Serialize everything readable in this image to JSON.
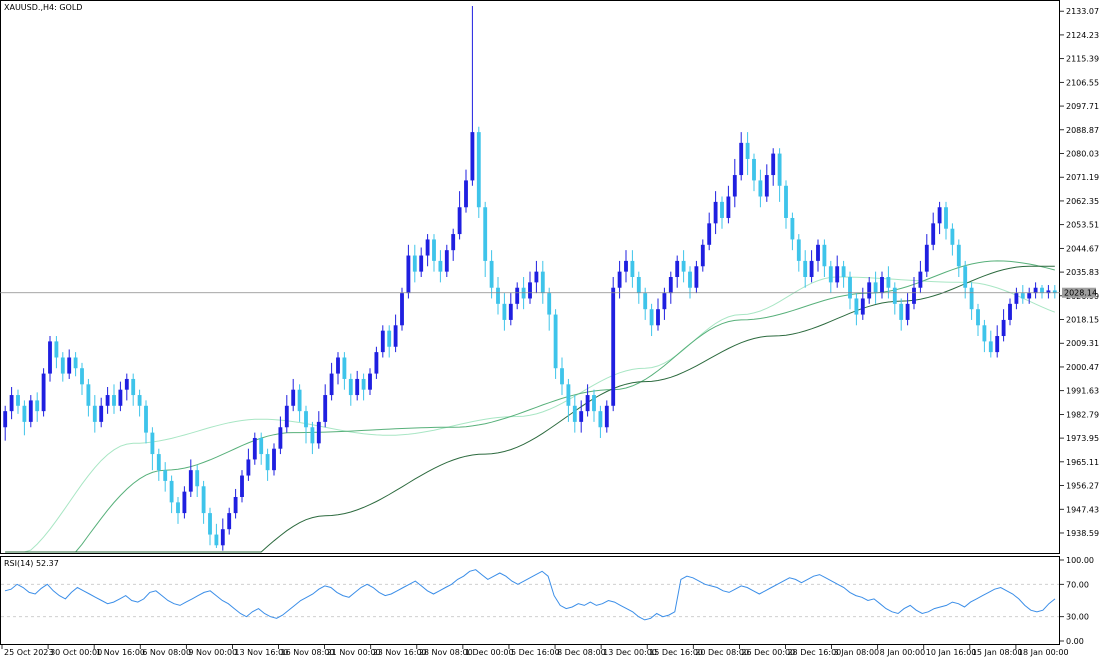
{
  "window": {
    "symbol_title": "XAUUSD.,H4:  GOLD"
  },
  "colors": {
    "background": "#ffffff",
    "bull_candle": "#1f1fe0",
    "bear_candle": "#3ec4ea",
    "ma_fast": "#a8e6c4",
    "ma_mid": "#57b07a",
    "ma_slow": "#2c6a3e",
    "rsi_line": "#3b8ee8",
    "grid_line": "#c8c8c8",
    "price_line": "#888888",
    "current_price_bg": "#9e9e9e"
  },
  "price_axis": {
    "labels": [
      "2133.07",
      "2124.23",
      "2115.39",
      "2106.55",
      "2097.71",
      "2088.87",
      "2080.03",
      "2071.19",
      "2062.35",
      "2053.51",
      "2044.67",
      "2035.83",
      "2026.99",
      "2018.15",
      "2009.31",
      "2000.47",
      "1991.63",
      "1982.79",
      "1973.95",
      "1965.11",
      "1956.27",
      "1947.43",
      "1938.59"
    ],
    "current_price": "2028.14",
    "ylim": [
      1931.5,
      2136.5
    ]
  },
  "time_axis": {
    "labels": [
      "25 Oct 2023",
      "30 Oct 00:00",
      "1 Nov 16:00",
      "6 Nov 08:00",
      "9 Nov 00:00",
      "13 Nov 16:00",
      "16 Nov 08:00",
      "21 Nov 00:00",
      "23 Nov 16:00",
      "28 Nov 08:00",
      "1 Dec 00:00",
      "5 Dec 16:00",
      "8 Dec 08:00",
      "13 Dec 00:00",
      "15 Dec 16:00",
      "20 Dec 08:00",
      "26 Dec 00:00",
      "28 Dec 16:00",
      "3 Jan 08:00",
      "8 Jan 00:00",
      "10 Jan 16:00",
      "15 Jan 08:00",
      "18 Jan 00:00"
    ]
  },
  "rsi": {
    "label": "RSI(14) 52.37",
    "levels": [
      "100.00",
      "70.00",
      "30.00",
      "0.00"
    ],
    "ylim": [
      0,
      100
    ],
    "values": [
      62,
      64,
      70,
      66,
      60,
      58,
      65,
      70,
      62,
      56,
      52,
      60,
      66,
      62,
      58,
      54,
      50,
      46,
      48,
      52,
      56,
      50,
      48,
      52,
      60,
      62,
      56,
      50,
      46,
      44,
      48,
      52,
      56,
      60,
      62,
      56,
      50,
      46,
      40,
      34,
      30,
      36,
      40,
      34,
      30,
      28,
      32,
      38,
      44,
      50,
      54,
      58,
      64,
      68,
      66,
      60,
      56,
      54,
      60,
      66,
      70,
      66,
      60,
      56,
      58,
      62,
      66,
      70,
      74,
      68,
      62,
      58,
      62,
      66,
      70,
      76,
      80,
      86,
      88,
      82,
      76,
      80,
      84,
      80,
      74,
      70,
      74,
      78,
      82,
      86,
      80,
      56,
      44,
      40,
      42,
      46,
      44,
      48,
      44,
      46,
      50,
      48,
      44,
      40,
      36,
      30,
      26,
      28,
      34,
      30,
      32,
      36,
      76,
      80,
      78,
      74,
      70,
      68,
      66,
      62,
      60,
      64,
      68,
      66,
      62,
      58,
      62,
      66,
      70,
      74,
      78,
      76,
      72,
      76,
      80,
      82,
      78,
      74,
      70,
      66,
      60,
      56,
      54,
      50,
      52,
      46,
      40,
      36,
      34,
      40,
      44,
      38,
      34,
      36,
      40,
      42,
      44,
      48,
      46,
      42,
      48,
      52,
      56,
      60,
      64,
      66,
      62,
      58,
      52,
      44,
      38,
      36,
      38,
      46,
      52
    ]
  },
  "chart_data": {
    "type": "candlestick",
    "title": "XAUUSD.,H4:  GOLD",
    "series_points": 175,
    "key_levels": {
      "current": 2028.14,
      "high": 2135.5,
      "low": 1933.2
    },
    "moving_averages": [
      {
        "values_anchor": [
          [
            0,
            1928
          ],
          [
            20,
            1972
          ],
          [
            40,
            1981
          ],
          [
            60,
            1975
          ],
          [
            80,
            1982
          ],
          [
            100,
            2000
          ],
          [
            115,
            2020
          ],
          [
            130,
            2034
          ],
          [
            150,
            2032
          ],
          [
            170,
            2018
          ],
          [
            175,
            2022
          ]
        ]
      },
      {
        "values_anchor": [
          [
            0,
            1910
          ],
          [
            25,
            1962
          ],
          [
            45,
            1976
          ],
          [
            70,
            1978
          ],
          [
            95,
            1992
          ],
          [
            115,
            2018
          ],
          [
            135,
            2028
          ],
          [
            155,
            2040
          ],
          [
            175,
            2032
          ]
        ]
      },
      {
        "values_anchor": [
          [
            0,
            1880
          ],
          [
            30,
            1918
          ],
          [
            50,
            1945
          ],
          [
            75,
            1968
          ],
          [
            100,
            1995
          ],
          [
            120,
            2012
          ],
          [
            140,
            2025
          ],
          [
            160,
            2038
          ],
          [
            175,
            2038
          ]
        ]
      }
    ],
    "candles": [
      [
        1978,
        1984,
        1973,
        1986
      ],
      [
        1984,
        1990,
        1981,
        1993
      ],
      [
        1990,
        1986,
        1983,
        1992
      ],
      [
        1986,
        1980,
        1975,
        1988
      ],
      [
        1980,
        1988,
        1978,
        1990
      ],
      [
        1988,
        1984,
        1980,
        1991
      ],
      [
        1984,
        1998,
        1982,
        2000
      ],
      [
        1998,
        2010,
        1995,
        2012
      ],
      [
        2010,
        2004,
        2000,
        2012
      ],
      [
        2004,
        1998,
        1995,
        2006
      ],
      [
        1998,
        2004,
        1996,
        2007
      ],
      [
        2004,
        2000,
        1997,
        2006
      ],
      [
        2000,
        1994,
        1990,
        2002
      ],
      [
        1994,
        1986,
        1982,
        1996
      ],
      [
        1986,
        1980,
        1976,
        1990
      ],
      [
        1980,
        1986,
        1978,
        1989
      ],
      [
        1986,
        1990,
        1983,
        1993
      ],
      [
        1990,
        1986,
        1983,
        1994
      ],
      [
        1986,
        1992,
        1984,
        1995
      ],
      [
        1992,
        1996,
        1988,
        1998
      ],
      [
        1996,
        1990,
        1986,
        1998
      ],
      [
        1990,
        1986,
        1982,
        1992
      ],
      [
        1986,
        1976,
        1972,
        1988
      ],
      [
        1976,
        1968,
        1962,
        1978
      ],
      [
        1968,
        1962,
        1958,
        1970
      ],
      [
        1962,
        1958,
        1954,
        1965
      ],
      [
        1958,
        1950,
        1946,
        1960
      ],
      [
        1950,
        1946,
        1942,
        1952
      ],
      [
        1946,
        1954,
        1944,
        1956
      ],
      [
        1954,
        1962,
        1952,
        1966
      ],
      [
        1962,
        1956,
        1952,
        1964
      ],
      [
        1956,
        1946,
        1942,
        1958
      ],
      [
        1946,
        1938,
        1934,
        1948
      ],
      [
        1938,
        1934,
        1933,
        1942
      ],
      [
        1934,
        1940,
        1932,
        1944
      ],
      [
        1940,
        1946,
        1938,
        1948
      ],
      [
        1946,
        1952,
        1944,
        1955
      ],
      [
        1952,
        1960,
        1950,
        1962
      ],
      [
        1960,
        1966,
        1958,
        1970
      ],
      [
        1966,
        1974,
        1964,
        1976
      ],
      [
        1974,
        1968,
        1964,
        1976
      ],
      [
        1968,
        1962,
        1958,
        1970
      ],
      [
        1962,
        1970,
        1960,
        1972
      ],
      [
        1970,
        1978,
        1968,
        1982
      ],
      [
        1978,
        1986,
        1976,
        1990
      ],
      [
        1986,
        1992,
        1984,
        1996
      ],
      [
        1992,
        1984,
        1980,
        1994
      ],
      [
        1984,
        1978,
        1972,
        1986
      ],
      [
        1978,
        1972,
        1968,
        1980
      ],
      [
        1972,
        1980,
        1970,
        1984
      ],
      [
        1980,
        1990,
        1978,
        1994
      ],
      [
        1990,
        1998,
        1988,
        2002
      ],
      [
        1998,
        2004,
        1994,
        2006
      ],
      [
        2004,
        1996,
        1992,
        2006
      ],
      [
        1996,
        1990,
        1986,
        1998
      ],
      [
        1990,
        1996,
        1988,
        1999
      ],
      [
        1996,
        1992,
        1988,
        1998
      ],
      [
        1992,
        1998,
        1990,
        2000
      ],
      [
        1998,
        2006,
        1996,
        2008
      ],
      [
        2006,
        2014,
        2004,
        2016
      ],
      [
        2014,
        2008,
        2004,
        2016
      ],
      [
        2008,
        2016,
        2006,
        2020
      ],
      [
        2016,
        2028,
        2014,
        2030
      ],
      [
        2028,
        2042,
        2026,
        2046
      ],
      [
        2042,
        2036,
        2032,
        2046
      ],
      [
        2036,
        2042,
        2034,
        2045
      ],
      [
        2042,
        2048,
        2038,
        2050
      ],
      [
        2048,
        2040,
        2036,
        2050
      ],
      [
        2040,
        2036,
        2032,
        2044
      ],
      [
        2036,
        2044,
        2034,
        2046
      ],
      [
        2044,
        2050,
        2040,
        2052
      ],
      [
        2050,
        2060,
        2048,
        2066
      ],
      [
        2060,
        2070,
        2058,
        2074
      ],
      [
        2070,
        2088,
        2068,
        2135
      ],
      [
        2088,
        2060,
        2056,
        2090
      ],
      [
        2060,
        2040,
        2034,
        2062
      ],
      [
        2040,
        2030,
        2026,
        2044
      ],
      [
        2030,
        2024,
        2020,
        2034
      ],
      [
        2024,
        2018,
        2014,
        2028
      ],
      [
        2018,
        2024,
        2016,
        2028
      ],
      [
        2024,
        2030,
        2022,
        2032
      ],
      [
        2030,
        2026,
        2022,
        2034
      ],
      [
        2026,
        2032,
        2024,
        2036
      ],
      [
        2032,
        2036,
        2028,
        2040
      ],
      [
        2036,
        2028,
        2024,
        2040
      ],
      [
        2028,
        2020,
        2014,
        2030
      ],
      [
        2020,
        2000,
        1996,
        2022
      ],
      [
        2000,
        1994,
        1990,
        2004
      ],
      [
        1994,
        1986,
        1980,
        1996
      ],
      [
        1986,
        1980,
        1976,
        1990
      ],
      [
        1980,
        1984,
        1976,
        1988
      ],
      [
        1984,
        1990,
        1982,
        1994
      ],
      [
        1990,
        1984,
        1980,
        1992
      ],
      [
        1984,
        1978,
        1974,
        1986
      ],
      [
        1978,
        1986,
        1976,
        1988
      ],
      [
        1986,
        2030,
        1984,
        2034
      ],
      [
        2030,
        2036,
        2026,
        2040
      ],
      [
        2036,
        2040,
        2032,
        2044
      ],
      [
        2040,
        2034,
        2030,
        2044
      ],
      [
        2034,
        2028,
        2024,
        2036
      ],
      [
        2028,
        2022,
        2018,
        2030
      ],
      [
        2022,
        2016,
        2012,
        2024
      ],
      [
        2016,
        2022,
        2014,
        2026
      ],
      [
        2022,
        2028,
        2018,
        2030
      ],
      [
        2028,
        2034,
        2024,
        2036
      ],
      [
        2034,
        2040,
        2030,
        2042
      ],
      [
        2040,
        2036,
        2032,
        2044
      ],
      [
        2036,
        2030,
        2026,
        2038
      ],
      [
        2030,
        2038,
        2028,
        2040
      ],
      [
        2038,
        2046,
        2036,
        2048
      ],
      [
        2046,
        2054,
        2044,
        2058
      ],
      [
        2054,
        2062,
        2050,
        2066
      ],
      [
        2062,
        2056,
        2052,
        2064
      ],
      [
        2056,
        2064,
        2054,
        2068
      ],
      [
        2064,
        2072,
        2060,
        2078
      ],
      [
        2072,
        2084,
        2070,
        2088
      ],
      [
        2084,
        2078,
        2072,
        2088
      ],
      [
        2078,
        2070,
        2066,
        2080
      ],
      [
        2070,
        2064,
        2060,
        2074
      ],
      [
        2064,
        2072,
        2062,
        2076
      ],
      [
        2072,
        2080,
        2068,
        2082
      ],
      [
        2080,
        2068,
        2062,
        2082
      ],
      [
        2068,
        2056,
        2052,
        2070
      ],
      [
        2056,
        2048,
        2044,
        2058
      ],
      [
        2048,
        2040,
        2036,
        2050
      ],
      [
        2040,
        2034,
        2030,
        2044
      ],
      [
        2034,
        2040,
        2032,
        2044
      ],
      [
        2040,
        2046,
        2036,
        2048
      ],
      [
        2046,
        2038,
        2034,
        2048
      ],
      [
        2038,
        2032,
        2028,
        2040
      ],
      [
        2032,
        2038,
        2030,
        2042
      ],
      [
        2038,
        2034,
        2030,
        2040
      ],
      [
        2034,
        2026,
        2022,
        2036
      ],
      [
        2026,
        2020,
        2016,
        2028
      ],
      [
        2020,
        2026,
        2018,
        2030
      ],
      [
        2026,
        2032,
        2024,
        2034
      ],
      [
        2032,
        2028,
        2024,
        2036
      ],
      [
        2028,
        2034,
        2026,
        2036
      ],
      [
        2034,
        2030,
        2026,
        2038
      ],
      [
        2030,
        2024,
        2020,
        2032
      ],
      [
        2024,
        2018,
        2014,
        2026
      ],
      [
        2018,
        2024,
        2016,
        2028
      ],
      [
        2024,
        2030,
        2022,
        2034
      ],
      [
        2030,
        2036,
        2028,
        2040
      ],
      [
        2036,
        2046,
        2034,
        2050
      ],
      [
        2046,
        2054,
        2044,
        2058
      ],
      [
        2054,
        2060,
        2050,
        2062
      ],
      [
        2060,
        2052,
        2048,
        2062
      ],
      [
        2052,
        2046,
        2042,
        2054
      ],
      [
        2046,
        2038,
        2034,
        2048
      ],
      [
        2038,
        2030,
        2026,
        2040
      ],
      [
        2030,
        2022,
        2018,
        2032
      ],
      [
        2022,
        2016,
        2012,
        2024
      ],
      [
        2016,
        2010,
        2006,
        2018
      ],
      [
        2010,
        2006,
        2004,
        2014
      ],
      [
        2006,
        2012,
        2004,
        2016
      ],
      [
        2012,
        2018,
        2010,
        2022
      ],
      [
        2018,
        2024,
        2016,
        2026
      ],
      [
        2024,
        2028,
        2022,
        2030
      ],
      [
        2028,
        2026,
        2024,
        2031
      ],
      [
        2026,
        2028,
        2024,
        2030
      ],
      [
        2028,
        2030,
        2026,
        2032
      ],
      [
        2030,
        2028,
        2026,
        2031
      ],
      [
        2028,
        2029,
        2026,
        2031
      ],
      [
        2029,
        2028,
        2026,
        2031
      ]
    ]
  }
}
